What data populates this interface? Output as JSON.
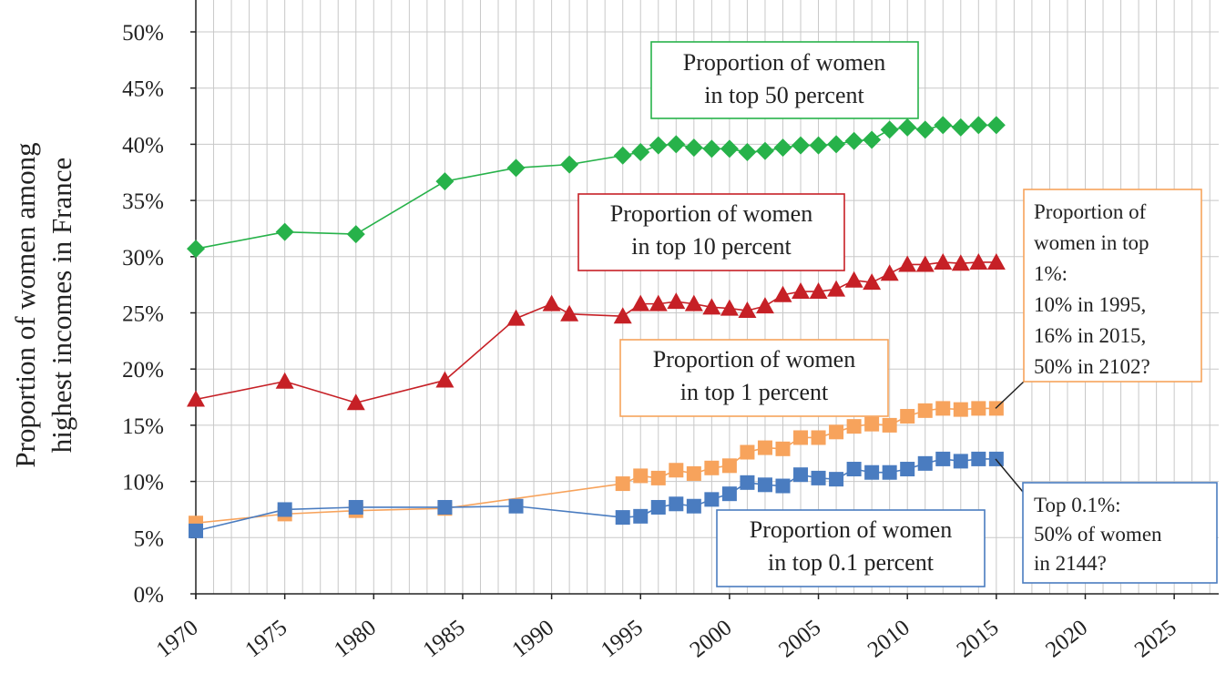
{
  "chart_data": {
    "type": "line",
    "title": "",
    "xlabel": "",
    "ylabel": [
      "Proportion of women among",
      "highest incomes in France"
    ],
    "xlim": [
      1970,
      2027
    ],
    "ylim": [
      0,
      52
    ],
    "grid": true,
    "x_ticks": [
      "1970",
      "1975",
      "1980",
      "1985",
      "1990",
      "1995",
      "2000",
      "2005",
      "2010",
      "2015",
      "2020",
      "2025"
    ],
    "y_ticks": [
      "0%",
      "5%",
      "10%",
      "15%",
      "20%",
      "25%",
      "30%",
      "35%",
      "40%",
      "45%",
      "50%"
    ],
    "series": [
      {
        "key": "top50",
        "color": "#27b24a",
        "marker": "diamond",
        "points": [
          [
            1970,
            30.7
          ],
          [
            1975,
            32.2
          ],
          [
            1979,
            32.0
          ],
          [
            1984,
            36.7
          ],
          [
            1988,
            37.9
          ],
          [
            1991,
            38.2
          ],
          [
            1994,
            39.0
          ],
          [
            1995,
            39.3
          ],
          [
            1996,
            39.9
          ],
          [
            1997,
            40.0
          ],
          [
            1998,
            39.7
          ],
          [
            1999,
            39.6
          ],
          [
            2000,
            39.6
          ],
          [
            2001,
            39.3
          ],
          [
            2002,
            39.4
          ],
          [
            2003,
            39.7
          ],
          [
            2004,
            39.9
          ],
          [
            2005,
            39.9
          ],
          [
            2006,
            40.0
          ],
          [
            2007,
            40.3
          ],
          [
            2008,
            40.4
          ],
          [
            2009,
            41.3
          ],
          [
            2010,
            41.5
          ],
          [
            2011,
            41.3
          ],
          [
            2012,
            41.7
          ],
          [
            2013,
            41.5
          ],
          [
            2014,
            41.7
          ],
          [
            2015,
            41.7
          ]
        ]
      },
      {
        "key": "top10",
        "color": "#c62026",
        "marker": "triangle",
        "points": [
          [
            1970,
            17.3
          ],
          [
            1975,
            18.9
          ],
          [
            1979,
            17.0
          ],
          [
            1984,
            19.0
          ],
          [
            1988,
            24.5
          ],
          [
            1990,
            25.8
          ],
          [
            1991,
            24.9
          ],
          [
            1994,
            24.7
          ],
          [
            1995,
            25.8
          ],
          [
            1996,
            25.8
          ],
          [
            1997,
            26.0
          ],
          [
            1998,
            25.8
          ],
          [
            1999,
            25.5
          ],
          [
            2000,
            25.4
          ],
          [
            2001,
            25.2
          ],
          [
            2002,
            25.6
          ],
          [
            2003,
            26.6
          ],
          [
            2004,
            26.9
          ],
          [
            2005,
            26.9
          ],
          [
            2006,
            27.1
          ],
          [
            2007,
            27.9
          ],
          [
            2008,
            27.7
          ],
          [
            2009,
            28.5
          ],
          [
            2010,
            29.3
          ],
          [
            2011,
            29.3
          ],
          [
            2012,
            29.5
          ],
          [
            2013,
            29.4
          ],
          [
            2014,
            29.5
          ],
          [
            2015,
            29.5
          ]
        ]
      },
      {
        "key": "top1",
        "color": "#f7a35c",
        "marker": "square",
        "points": [
          [
            1970,
            6.3
          ],
          [
            1975,
            7.1
          ],
          [
            1979,
            7.4
          ],
          [
            1984,
            7.6
          ],
          [
            1994,
            9.8
          ],
          [
            1995,
            10.5
          ],
          [
            1996,
            10.3
          ],
          [
            1997,
            11.0
          ],
          [
            1998,
            10.7
          ],
          [
            1999,
            11.2
          ],
          [
            2000,
            11.4
          ],
          [
            2001,
            12.6
          ],
          [
            2002,
            13.0
          ],
          [
            2003,
            12.9
          ],
          [
            2004,
            13.9
          ],
          [
            2005,
            13.9
          ],
          [
            2006,
            14.4
          ],
          [
            2007,
            14.9
          ],
          [
            2008,
            15.1
          ],
          [
            2009,
            15.0
          ],
          [
            2010,
            15.8
          ],
          [
            2011,
            16.3
          ],
          [
            2012,
            16.5
          ],
          [
            2013,
            16.4
          ],
          [
            2014,
            16.5
          ],
          [
            2015,
            16.5
          ]
        ]
      },
      {
        "key": "top01",
        "color": "#4a7cc0",
        "marker": "square",
        "points": [
          [
            1970,
            5.6
          ],
          [
            1975,
            7.5
          ],
          [
            1979,
            7.7
          ],
          [
            1984,
            7.7
          ],
          [
            1988,
            7.8
          ],
          [
            1994,
            6.8
          ],
          [
            1995,
            6.9
          ],
          [
            1996,
            7.7
          ],
          [
            1997,
            8.0
          ],
          [
            1998,
            7.8
          ],
          [
            1999,
            8.4
          ],
          [
            2000,
            8.9
          ],
          [
            2001,
            9.9
          ],
          [
            2002,
            9.7
          ],
          [
            2003,
            9.6
          ],
          [
            2004,
            10.6
          ],
          [
            2005,
            10.3
          ],
          [
            2006,
            10.2
          ],
          [
            2007,
            11.1
          ],
          [
            2008,
            10.8
          ],
          [
            2009,
            10.8
          ],
          [
            2010,
            11.1
          ],
          [
            2011,
            11.6
          ],
          [
            2012,
            12.0
          ],
          [
            2013,
            11.8
          ],
          [
            2014,
            12.0
          ],
          [
            2015,
            12.0
          ]
        ]
      }
    ],
    "annotations": [
      {
        "key": "top50",
        "color": "#27b24a",
        "lines": [
          "Proportion of women",
          "in top 50 percent"
        ]
      },
      {
        "key": "top10",
        "color": "#c62026",
        "lines": [
          "Proportion of women",
          "in top 10 percent"
        ]
      },
      {
        "key": "top1",
        "color": "#f7a35c",
        "lines": [
          "Proportion of women",
          "in top 1 percent"
        ]
      },
      {
        "key": "top01",
        "color": "#4a7cc0",
        "lines": [
          "Proportion of women",
          "in top 0.1 percent"
        ]
      },
      {
        "key": "note1",
        "color": "#f7a35c",
        "lines": [
          "Proportion of",
          "women in top",
          "1%:",
          "10% in 1995,",
          "16% in 2015,",
          "50% in 2102?"
        ]
      },
      {
        "key": "note01",
        "color": "#4a7cc0",
        "lines": [
          "Top 0.1%:",
          "50% of women",
          "in 2144?"
        ]
      }
    ]
  }
}
